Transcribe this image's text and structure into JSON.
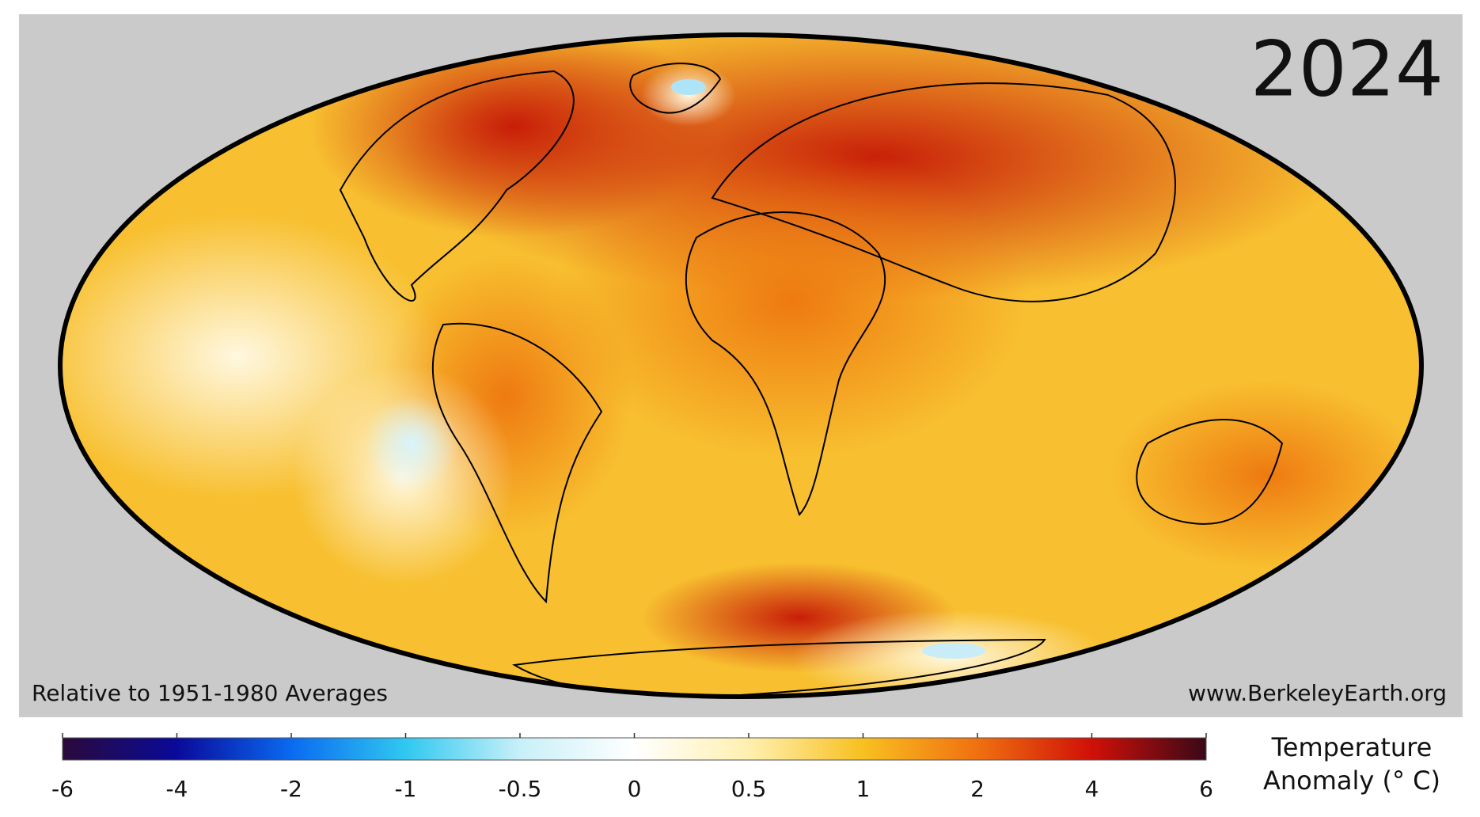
{
  "map": {
    "year": "2024",
    "note_left": "Relative to 1951-1980 Averages",
    "note_right": "www.BerkeleyEarth.org"
  },
  "colorbar": {
    "ticks": [
      -6,
      -4,
      -2,
      -1,
      -0.5,
      0,
      0.5,
      1,
      2,
      4,
      6
    ],
    "colors": [
      "#2a0a3a",
      "#0a0a9a",
      "#0a6af0",
      "#30c8f0",
      "#c8f0f8",
      "#ffffff",
      "#fff0b0",
      "#f8c020",
      "#f07010",
      "#d01008",
      "#3a0818"
    ],
    "title_lines": [
      "Temperature",
      "Anomaly (° C)"
    ]
  }
}
